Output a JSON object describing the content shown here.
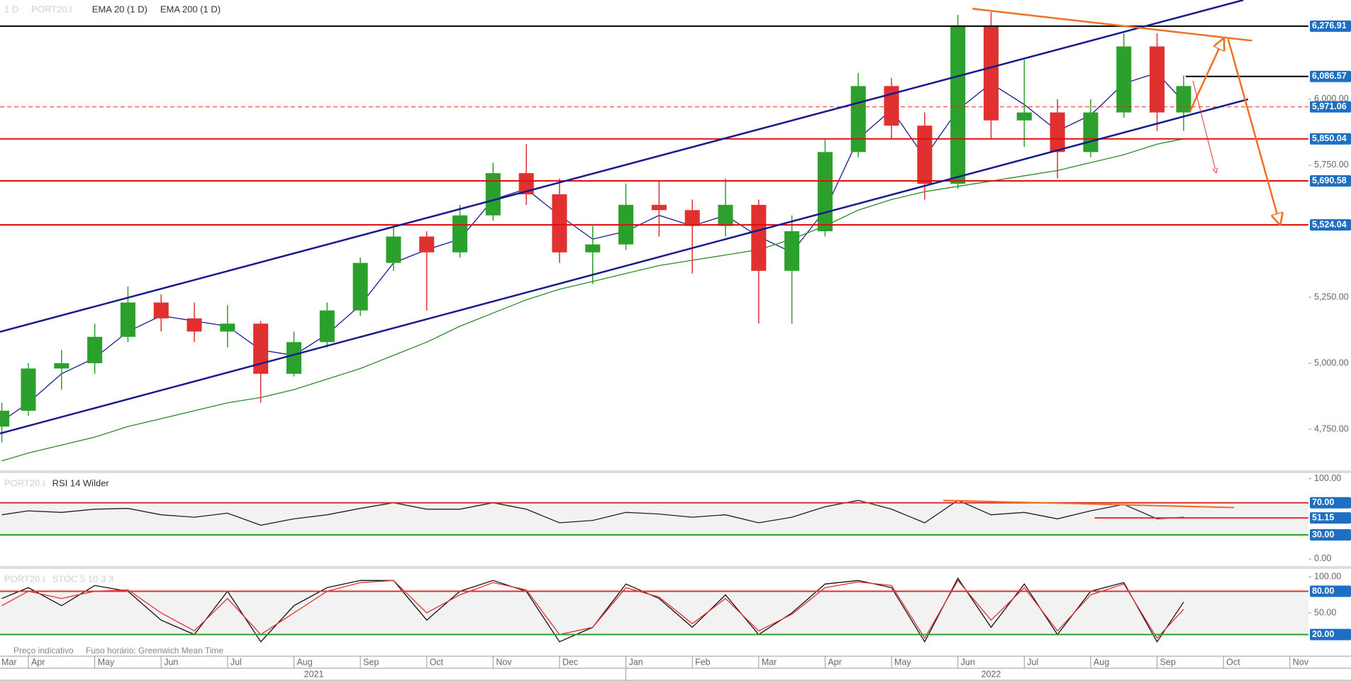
{
  "chart_data": [
    {
      "type": "candlestick",
      "title": "1 D",
      "symbol": "PORT20.I",
      "x": [
        0.6,
        1,
        1.5,
        2,
        2.5,
        3,
        3.5,
        4,
        4.5,
        5,
        5.5,
        6,
        6.5,
        7,
        7.5,
        8,
        8.5,
        9,
        9.5,
        10,
        10.5,
        11,
        11.5,
        12,
        12.5,
        13,
        13.5,
        14,
        14.5,
        15,
        15.5,
        16,
        16.5,
        17,
        17.5,
        18,
        18.4
      ],
      "open": [
        4760,
        4820,
        4980,
        5000,
        5100,
        5230,
        5170,
        5120,
        5150,
        4960,
        5080,
        5200,
        5380,
        5480,
        5420,
        5560,
        5720,
        5640,
        5420,
        5450,
        5600,
        5580,
        5520,
        5600,
        5350,
        5500,
        5800,
        6050,
        5900,
        5680,
        6280,
        5920,
        5950,
        5800,
        5950,
        6200,
        5950
      ],
      "high": [
        4850,
        5000,
        5050,
        5150,
        5290,
        5260,
        5230,
        5220,
        5160,
        5120,
        5230,
        5400,
        5520,
        5500,
        5600,
        5760,
        5830,
        5700,
        5520,
        5680,
        5690,
        5620,
        5700,
        5620,
        5560,
        5850,
        6100,
        6080,
        5950,
        6320,
        6330,
        6150,
        6000,
        6000,
        6250,
        6250,
        6090
      ],
      "low": [
        4700,
        4800,
        4900,
        4960,
        5080,
        5120,
        5080,
        5060,
        4850,
        4950,
        5060,
        5180,
        5350,
        5200,
        5400,
        5540,
        5600,
        5380,
        5300,
        5430,
        5480,
        5340,
        5480,
        5150,
        5150,
        5480,
        5780,
        5850,
        5620,
        5660,
        5850,
        5820,
        5700,
        5780,
        5930,
        5880,
        5880
      ],
      "close": [
        4820,
        4980,
        5000,
        5100,
        5230,
        5170,
        5120,
        5150,
        4960,
        5080,
        5200,
        5380,
        5480,
        5420,
        5560,
        5720,
        5640,
        5420,
        5450,
        5600,
        5580,
        5520,
        5600,
        5350,
        5500,
        5800,
        6050,
        5900,
        5680,
        6280,
        5920,
        5950,
        5800,
        5950,
        6200,
        5950,
        6050
      ],
      "up_color": "#2ca02c",
      "down_color": "#e03030",
      "series": [
        {
          "name": "EMA 20  (1 D)",
          "color": "#1a1a8c",
          "values": [
            4780,
            4850,
            4960,
            5020,
            5120,
            5180,
            5160,
            5140,
            5050,
            5030,
            5110,
            5220,
            5380,
            5430,
            5470,
            5620,
            5660,
            5560,
            5470,
            5500,
            5560,
            5520,
            5560,
            5480,
            5420,
            5580,
            5850,
            5960,
            5780,
            5960,
            6060,
            5980,
            5880,
            5940,
            6060,
            6100,
            5990
          ]
        },
        {
          "name": "EMA 200  (1 D)",
          "color": "#2e8b2e",
          "values": [
            4630,
            4660,
            4690,
            4720,
            4760,
            4790,
            4820,
            4850,
            4870,
            4900,
            4940,
            4980,
            5030,
            5080,
            5140,
            5190,
            5240,
            5280,
            5310,
            5340,
            5370,
            5390,
            5410,
            5430,
            5470,
            5520,
            5580,
            5620,
            5650,
            5670,
            5690,
            5710,
            5730,
            5760,
            5790,
            5830,
            5850
          ]
        }
      ],
      "xlim": [
        0.573,
        20.28
      ],
      "xticks": [
        {
          "value": 0,
          "label": "Mar"
        },
        {
          "value": 1,
          "label": "Apr"
        },
        {
          "value": 2,
          "label": "May"
        },
        {
          "value": 3,
          "label": "Jun"
        },
        {
          "value": 4,
          "label": "Jul"
        },
        {
          "value": 5,
          "label": "Aug"
        },
        {
          "value": 6,
          "label": "Sep"
        },
        {
          "value": 7,
          "label": "Oct"
        },
        {
          "value": 8,
          "label": "Nov"
        },
        {
          "value": 9,
          "label": "Dec"
        },
        {
          "value": 10,
          "label": "Jan"
        },
        {
          "value": 11,
          "label": "Feb"
        },
        {
          "value": 12,
          "label": "Mar"
        },
        {
          "value": 13,
          "label": "Apr"
        },
        {
          "value": 14,
          "label": "May"
        },
        {
          "value": 15,
          "label": "Jun"
        },
        {
          "value": 16,
          "label": "Jul"
        },
        {
          "value": 17,
          "label": "Aug"
        },
        {
          "value": 18,
          "label": "Sep"
        },
        {
          "value": 19,
          "label": "Oct"
        },
        {
          "value": 20,
          "label": "Nov"
        }
      ],
      "year_labels": [
        {
          "value": 5.3,
          "label": "2021"
        },
        {
          "value": 15.5,
          "label": "2022"
        }
      ],
      "year_divider": 10,
      "ylim": [
        4597,
        6376
      ],
      "yticks": [
        {
          "value": 4750,
          "label": "4,750.00"
        },
        {
          "value": 5000,
          "label": "5,000.00"
        },
        {
          "value": 5250,
          "label": "5,250.00"
        },
        {
          "value": 5750,
          "label": "5,750.00"
        },
        {
          "value": 6000,
          "label": "6,000.00"
        }
      ],
      "levels": [
        {
          "value": 6276.91,
          "label": "6,276.91",
          "color": "#000000"
        },
        {
          "value": 6086.57,
          "label": "6,086.57",
          "color": "#000000",
          "from": 18.43
        },
        {
          "value": 5971.06,
          "label": "5,971.06",
          "color": "#e03030",
          "dashed": true
        },
        {
          "value": 5850.04,
          "label": "5,850.04",
          "color": "#e01010"
        },
        {
          "value": 5690.58,
          "label": "5,690.58",
          "color": "#e01010"
        },
        {
          "value": 5524.04,
          "label": "5,524.04",
          "color": "#e01010"
        }
      ],
      "trendlines": [
        {
          "x": [
            0.573,
            19.3
          ],
          "y": [
            5119,
            6376
          ],
          "color": "#1a1a8c",
          "width": 2.5
        },
        {
          "x": [
            0.573,
            19.37
          ],
          "y": [
            4734,
            6000
          ],
          "color": "#1a1a8c",
          "width": 2.5
        },
        {
          "x": [
            15.22,
            19.43
          ],
          "y": [
            6343,
            6222
          ],
          "color": "#f07020",
          "width": 2.5
        },
        {
          "x": [
            18.49,
            19.0
          ],
          "y": [
            5951,
            6228
          ],
          "color": "#f07020",
          "width": 2.5,
          "arrow": true
        },
        {
          "x": [
            19.07,
            19.85
          ],
          "y": [
            6228,
            5527
          ],
          "color": "#f07020",
          "width": 2.5,
          "arrow": true
        },
        {
          "x": [
            18.54,
            18.89
          ],
          "y": [
            6070,
            5722
          ],
          "color": "#e03030",
          "width": 1,
          "arrow": true
        }
      ]
    },
    {
      "type": "line",
      "title": "RSI 14 Wilder",
      "symbol": "PORT20.I",
      "series": [
        {
          "color": "#222222",
          "values": [
            55,
            60,
            58,
            62,
            63,
            55,
            52,
            57,
            42,
            50,
            55,
            63,
            70,
            62,
            62,
            70,
            62,
            45,
            48,
            58,
            56,
            52,
            55,
            45,
            52,
            65,
            73,
            62,
            45,
            73,
            55,
            58,
            50,
            60,
            68,
            50,
            52
          ]
        }
      ],
      "ylim": [
        -8,
        106
      ],
      "yticks": [
        {
          "value": 0,
          "label": "0.00"
        },
        {
          "value": 100,
          "label": "100.00"
        }
      ],
      "band": [
        30,
        70
      ],
      "levels": [
        {
          "value": 70,
          "label": "70.00",
          "color": "#e03030"
        },
        {
          "value": 51.15,
          "label": "51.15",
          "color": "#e03030",
          "from": 17.06
        },
        {
          "value": 30,
          "label": "30.00",
          "color": "#2ca02c"
        }
      ],
      "trendlines": [
        {
          "x": [
            14.78,
            19.16
          ],
          "y": [
            73,
            64
          ],
          "color": "#f07020",
          "width": 2
        }
      ]
    },
    {
      "type": "line",
      "title": "STOC 5 10 3 3",
      "symbol": "PORT20.I",
      "series": [
        {
          "color": "#111111",
          "values": [
            70,
            85,
            60,
            88,
            80,
            40,
            20,
            80,
            10,
            60,
            85,
            95,
            95,
            40,
            80,
            95,
            80,
            10,
            30,
            90,
            70,
            30,
            75,
            20,
            50,
            90,
            95,
            85,
            10,
            98,
            30,
            90,
            20,
            80,
            92,
            10,
            65
          ]
        },
        {
          "color": "#e03030",
          "values": [
            60,
            80,
            70,
            80,
            82,
            50,
            25,
            70,
            20,
            50,
            80,
            92,
            95,
            50,
            75,
            92,
            82,
            20,
            30,
            85,
            72,
            35,
            70,
            25,
            48,
            85,
            93,
            88,
            15,
            95,
            40,
            85,
            25,
            75,
            90,
            15,
            55
          ]
        }
      ],
      "ylim": [
        -10,
        110
      ],
      "yticks": [
        {
          "value": 50,
          "label": "50.00"
        },
        {
          "value": 100,
          "label": "100.00"
        }
      ],
      "band": [
        20,
        80
      ],
      "levels": [
        {
          "value": 80,
          "label": "80.00",
          "color": "#e03030"
        },
        {
          "value": 20,
          "label": "20.00",
          "color": "#2ca02c"
        }
      ]
    }
  ],
  "footer": [
    "Preço indicativo",
    "Fuso horário: Greenwich Mean Time"
  ]
}
